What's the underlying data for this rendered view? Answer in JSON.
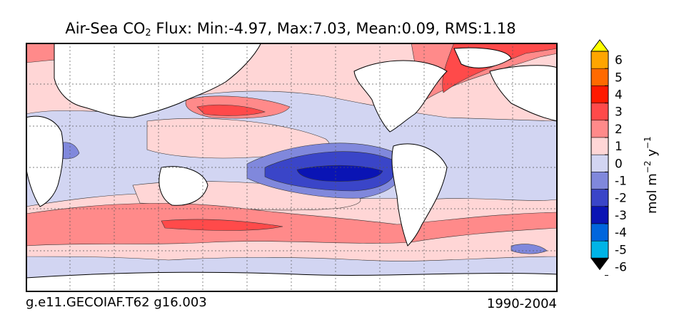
{
  "chart_data": {
    "type": "filled-contour-map",
    "title_prefix": "Air-Sea CO",
    "title_subscript": "2",
    "title_suffix": " Flux: Min:-4.97, Max:7.03, Mean:0.09, RMS:1.18",
    "stats": {
      "min": -4.97,
      "max": 7.03,
      "mean": 0.09,
      "rms": 1.18
    },
    "case_name": "g.e11.GECOIAF.T62 g16.003",
    "years": "1990-2004",
    "colorbar": {
      "label": "mol m",
      "label_sup1": "−2",
      "label_mid": " y",
      "label_sup2": "−1",
      "levels": [
        -7,
        -6,
        -5,
        -4,
        -3,
        -2,
        -1,
        0,
        1,
        2,
        3,
        4,
        5,
        6,
        7
      ],
      "tick_labels": [
        "6",
        "5",
        "4",
        "3",
        "2",
        "1",
        "0",
        "-1",
        "-2",
        "-3",
        "-4",
        "-5",
        "-6"
      ],
      "extend": "both",
      "colors": [
        "#00ffff",
        "#00b4e6",
        "#0066dd",
        "#0a14b4",
        "#3a45c8",
        "#8088dc",
        "#d2d5f2",
        "#ffd6d6",
        "#ff8a8a",
        "#ff4a4a",
        "#ff1a00",
        "#ff6a00",
        "#ffa500",
        "#ffff00"
      ]
    }
  }
}
